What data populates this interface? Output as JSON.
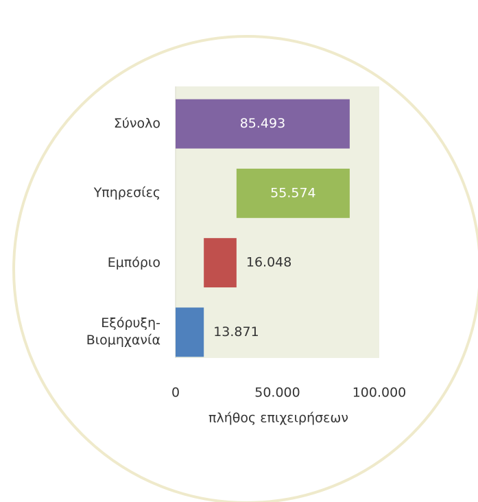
{
  "chart_data": {
    "type": "waterfall",
    "categories": [
      "Σύνολο",
      "Υπηρεσίες",
      "Εμπόριο",
      "Εξόρυξη-\nΒιομηχανία"
    ],
    "series": [
      {
        "colors": [
          "#8064a2",
          "#9bbb59",
          "#c0504d",
          "#4f81bd"
        ],
        "values": [
          85493,
          55574,
          16048,
          13871
        ],
        "value_labels": [
          "85.493",
          "55.574",
          "16.048",
          "13.871"
        ]
      }
    ],
    "xlim": [
      0,
      100000
    ],
    "xticks": [
      0,
      {
        "value": 50000,
        "label": "50.000"
      },
      {
        "value": 100000,
        "label": "100.000"
      }
    ],
    "xlabel": "πλήθος επιχειρήσεων"
  }
}
